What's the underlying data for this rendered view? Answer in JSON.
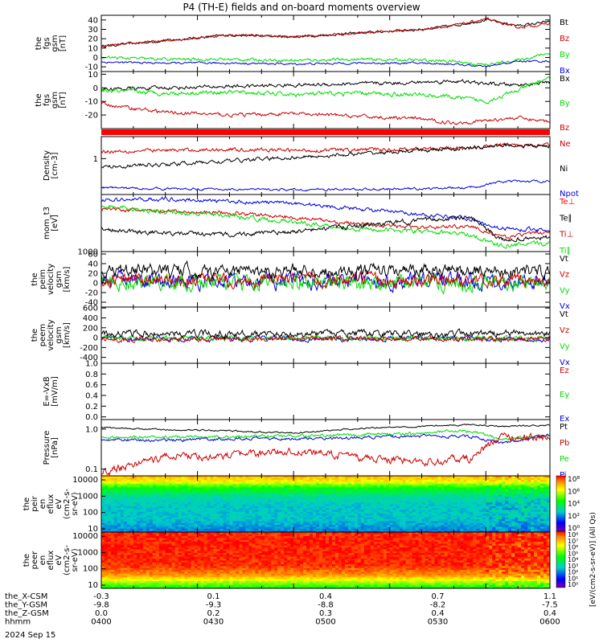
{
  "title": "P4 (TH-E) fields and on-board moments overview",
  "colors": {
    "black": "#000000",
    "red": "#cc0000",
    "green": "#00dd00",
    "blue": "#0000dd",
    "brightred": "#ff0000"
  },
  "chart_data": [
    {
      "id": "fgs_bt",
      "type": "line",
      "ylabel_lines": [
        "the",
        "fgs",
        "gsm",
        "[nT]"
      ],
      "ylim": [
        -15,
        45
      ],
      "yticks": [
        -10,
        0,
        10,
        20,
        30,
        40
      ],
      "legend": [
        {
          "name": "Bt",
          "color": "#000000"
        },
        {
          "name": "Bz",
          "color": "#cc0000"
        },
        {
          "name": "By",
          "color": "#00dd00"
        },
        {
          "name": "Bx",
          "color": "#0000dd"
        }
      ],
      "series": [
        {
          "name": "Bt",
          "color": "#000000",
          "noise": 1.0,
          "x": [
            -0.3,
            -0.1,
            0.1,
            0.3,
            0.5,
            0.7,
            0.8,
            0.9,
            1.0,
            1.1
          ],
          "y": [
            12,
            18,
            24,
            22,
            26,
            30,
            34,
            40,
            34,
            38
          ]
        },
        {
          "name": "Bz",
          "color": "#cc0000",
          "noise": 1.0,
          "x": [
            -0.3,
            -0.1,
            0.1,
            0.3,
            0.5,
            0.7,
            0.8,
            0.9,
            1.0,
            1.1
          ],
          "y": [
            12,
            18,
            24,
            22,
            26,
            30,
            34,
            41,
            32,
            36
          ]
        },
        {
          "name": "By",
          "color": "#00dd00",
          "noise": 1.2,
          "x": [
            -0.3,
            -0.1,
            0.1,
            0.3,
            0.5,
            0.7,
            0.8,
            0.9,
            1.0,
            1.1
          ],
          "y": [
            0,
            -2,
            -2,
            -3,
            -2,
            -3,
            -4,
            -8,
            -3,
            5
          ]
        },
        {
          "name": "Bx",
          "color": "#0000dd",
          "noise": 0.8,
          "x": [
            -0.3,
            -0.1,
            0.1,
            0.3,
            0.5,
            0.7,
            0.8,
            0.9,
            1.0,
            1.1
          ],
          "y": [
            -5,
            -6,
            -6,
            -7,
            -6,
            -6,
            -7,
            -10,
            -4,
            -4
          ]
        }
      ]
    },
    {
      "id": "fgs_b",
      "type": "line",
      "ylabel_lines": [
        "the",
        "fgs",
        "gsm",
        "[nT]"
      ],
      "ylim": [
        -30,
        12
      ],
      "yticks": [
        -20,
        -10,
        0,
        10
      ],
      "legend": [
        {
          "name": "Bx",
          "color": "#000000"
        },
        {
          "name": "By",
          "color": "#00dd00"
        },
        {
          "name": "Bz",
          "color": "#cc0000"
        }
      ],
      "series": [
        {
          "name": "Bx",
          "color": "#000000",
          "noise": 1.0,
          "x": [
            -0.3,
            -0.1,
            0.1,
            0.3,
            0.5,
            0.7,
            0.8,
            0.9,
            1.0,
            1.1
          ],
          "y": [
            -1,
            0,
            1,
            2,
            3,
            4,
            5,
            3,
            2,
            4
          ]
        },
        {
          "name": "By",
          "color": "#00dd00",
          "noise": 1.2,
          "x": [
            -0.3,
            -0.1,
            0.1,
            0.3,
            0.5,
            0.7,
            0.8,
            0.9,
            1.0,
            1.1
          ],
          "y": [
            -2,
            -4,
            -3,
            -5,
            -4,
            -5,
            -7,
            -10,
            -2,
            8
          ]
        },
        {
          "name": "Bz",
          "color": "#cc0000",
          "noise": 1.0,
          "x": [
            -0.3,
            -0.1,
            0.1,
            0.3,
            0.5,
            0.7,
            0.8,
            0.9,
            1.0,
            1.1
          ],
          "y": [
            -12,
            -18,
            -20,
            -19,
            -21,
            -23,
            -26,
            -24,
            -22,
            -25
          ]
        }
      ]
    },
    {
      "id": "density",
      "type": "line",
      "ylabel_lines": [
        "Density",
        "[cm-3]"
      ],
      "ylim": [
        0,
        10
      ],
      "yticks_labels": [
        {
          "v": 6.2,
          "t": "1"
        }
      ],
      "legend": [
        {
          "name": "Ne",
          "color": "#cc0000"
        },
        {
          "name": "Ni",
          "color": "#000000"
        },
        {
          "name": "Npot",
          "color": "#0000dd"
        }
      ],
      "series": [
        {
          "name": "Ne",
          "color": "#cc0000",
          "noise": 0.25,
          "x": [
            -0.3,
            -0.1,
            0.1,
            0.3,
            0.5,
            0.7,
            0.85,
            0.95,
            1.1
          ],
          "y": [
            7.5,
            7.6,
            7.8,
            7.6,
            7.7,
            7.9,
            8.0,
            8.6,
            8.5
          ]
        },
        {
          "name": "Ni",
          "color": "#000000",
          "noise": 0.25,
          "x": [
            -0.3,
            -0.1,
            0.1,
            0.3,
            0.5,
            0.7,
            0.85,
            0.95,
            1.1
          ],
          "y": [
            4.8,
            5.2,
            5.8,
            6.4,
            7.0,
            7.6,
            8.0,
            8.5,
            8.4
          ]
        },
        {
          "name": "Npot",
          "color": "#0000dd",
          "noise": 0.15,
          "x": [
            -0.3,
            -0.1,
            0.1,
            0.3,
            0.5,
            0.7,
            0.85,
            0.95,
            1.1
          ],
          "y": [
            1.2,
            1.0,
            0.9,
            0.8,
            0.9,
            1.0,
            1.2,
            2.2,
            2.3
          ]
        }
      ]
    },
    {
      "id": "temp",
      "type": "line",
      "ylabel_lines": [
        "mom_t3",
        "[eV]"
      ],
      "ylim": [
        0,
        10
      ],
      "yticks_labels": [
        {
          "v": 0,
          "t": "1000"
        }
      ],
      "legend": [
        {
          "name": "Te⊥",
          "color": "#ff0000"
        },
        {
          "name": "Te∥",
          "color": "#000000"
        },
        {
          "name": "Ti⊥",
          "color": "#cc0000"
        },
        {
          "name": "Ti∥",
          "color": "#00dd00"
        }
      ],
      "series": [
        {
          "name": "Tperp_i",
          "color": "#0000dd",
          "noise": 0.25,
          "x": [
            -0.3,
            -0.1,
            0.1,
            0.3,
            0.5,
            0.7,
            0.85,
            0.95,
            1.1
          ],
          "y": [
            9.0,
            9.2,
            8.8,
            8.5,
            7.5,
            6.5,
            5.8,
            4.0,
            3.8
          ]
        },
        {
          "name": "Te_perp",
          "color": "#cc0000",
          "noise": 0.25,
          "x": [
            -0.3,
            -0.1,
            0.1,
            0.3,
            0.5,
            0.7,
            0.85,
            0.95,
            1.1
          ],
          "y": [
            7.5,
            7.0,
            6.8,
            6.0,
            4.8,
            4.2,
            4.5,
            2.5,
            3.5
          ]
        },
        {
          "name": "Ti_par",
          "color": "#00dd00",
          "noise": 0.3,
          "x": [
            -0.3,
            -0.1,
            0.1,
            0.3,
            0.5,
            0.7,
            0.85,
            0.95,
            1.1
          ],
          "y": [
            8.0,
            7.0,
            6.2,
            5.2,
            4.0,
            3.5,
            3.0,
            1.0,
            1.5
          ]
        },
        {
          "name": "Te_par",
          "color": "#000000",
          "noise": 0.3,
          "x": [
            -0.3,
            -0.1,
            0.1,
            0.3,
            0.5,
            0.7,
            0.85,
            0.95,
            1.1
          ],
          "y": [
            4.0,
            3.2,
            3.0,
            3.5,
            4.5,
            5.5,
            6.0,
            2.0,
            2.5
          ]
        }
      ]
    },
    {
      "id": "peim",
      "type": "line",
      "ylabel_lines": [
        "the",
        "peim",
        "velocity",
        "gsm",
        "[km/s]"
      ],
      "ylim": [
        -50,
        65
      ],
      "yticks": [
        -40,
        -20,
        0,
        20,
        40,
        60
      ],
      "legend": [
        {
          "name": "Vt",
          "color": "#000000"
        },
        {
          "name": "Vz",
          "color": "#cc0000"
        },
        {
          "name": "Vy",
          "color": "#00dd00"
        },
        {
          "name": "Vx",
          "color": "#0000dd"
        }
      ],
      "series": [
        {
          "name": "Vx",
          "color": "#0000dd",
          "noise": 12,
          "x": [
            -0.3,
            1.1
          ],
          "y": [
            5,
            5
          ]
        },
        {
          "name": "Vy",
          "color": "#00dd00",
          "noise": 12,
          "x": [
            -0.3,
            1.1
          ],
          "y": [
            0,
            0
          ]
        },
        {
          "name": "Vz",
          "color": "#cc0000",
          "noise": 10,
          "x": [
            -0.3,
            1.1
          ],
          "y": [
            5,
            5
          ]
        },
        {
          "name": "Vt",
          "color": "#000000",
          "noise": 10,
          "x": [
            -0.3,
            1.1
          ],
          "y": [
            25,
            25
          ]
        }
      ]
    },
    {
      "id": "peem",
      "type": "line",
      "ylabel_lines": [
        "the",
        "peem",
        "velocity",
        "gsm",
        "[km/s]"
      ],
      "ylim": [
        -520,
        620
      ],
      "yticks": [
        -400,
        -200,
        0,
        200,
        400,
        600
      ],
      "legend": [
        {
          "name": "Vt",
          "color": "#000000"
        },
        {
          "name": "Vz",
          "color": "#cc0000"
        },
        {
          "name": "Vy",
          "color": "#00dd00"
        },
        {
          "name": "Vx",
          "color": "#0000dd"
        }
      ],
      "series": [
        {
          "name": "Vx",
          "color": "#0000dd",
          "noise": 40,
          "x": [
            -0.3,
            1.1
          ],
          "y": [
            -20,
            -20
          ]
        },
        {
          "name": "Vy",
          "color": "#00dd00",
          "noise": 35,
          "x": [
            -0.3,
            1.1
          ],
          "y": [
            -10,
            -10
          ]
        },
        {
          "name": "Vz",
          "color": "#cc0000",
          "noise": 40,
          "x": [
            -0.3,
            1.1
          ],
          "y": [
            -30,
            -30
          ]
        },
        {
          "name": "Vt",
          "color": "#000000",
          "noise": 50,
          "x": [
            -0.3,
            1.1
          ],
          "y": [
            80,
            80
          ]
        }
      ]
    },
    {
      "id": "efield",
      "type": "line",
      "ylabel_lines": [
        "E=-VxB",
        "[mV/m]"
      ],
      "ylim": [
        -0.05,
        1.0
      ],
      "yticks": [
        0.0,
        0.2,
        0.4,
        0.6,
        0.8,
        1.0
      ],
      "ytick_fmt": 1,
      "legend": [
        {
          "name": "Ez",
          "color": "#cc0000"
        },
        {
          "name": "Ey",
          "color": "#00dd00"
        },
        {
          "name": "Ex",
          "color": "#0000dd"
        }
      ],
      "series": []
    },
    {
      "id": "pressure",
      "type": "line",
      "ylabel_lines": [
        "Pressure",
        "[nPa]"
      ],
      "ylim": [
        0,
        10
      ],
      "yticks_labels": [
        {
          "v": 1.2,
          "t": "0.1"
        },
        {
          "v": 8.3,
          "t": "1.0"
        }
      ],
      "legend": [
        {
          "name": "Pt",
          "color": "#000000"
        },
        {
          "name": "Pb",
          "color": "#cc0000"
        },
        {
          "name": "Pe",
          "color": "#00dd00"
        },
        {
          "name": "Pi",
          "color": "#0000dd"
        }
      ],
      "series": [
        {
          "name": "Pt",
          "color": "#000000",
          "noise": 0.1,
          "x": [
            -0.3,
            -0.1,
            0.1,
            0.3,
            0.5,
            0.7,
            0.85,
            0.95,
            1.1
          ],
          "y": [
            8.6,
            8.2,
            8.0,
            7.6,
            8.4,
            8.8,
            9.1,
            8.8,
            9.0
          ]
        },
        {
          "name": "Pe",
          "color": "#00dd00",
          "noise": 0.2,
          "x": [
            -0.3,
            -0.1,
            0.1,
            0.3,
            0.5,
            0.7,
            0.85,
            0.95,
            1.1
          ],
          "y": [
            6.8,
            6.9,
            7.0,
            7.1,
            7.3,
            7.6,
            8.0,
            6.5,
            7.0
          ]
        },
        {
          "name": "Pi",
          "color": "#0000dd",
          "noise": 0.2,
          "x": [
            -0.3,
            -0.1,
            0.1,
            0.3,
            0.5,
            0.7,
            0.85,
            0.95,
            1.1
          ],
          "y": [
            6.5,
            6.3,
            6.6,
            6.6,
            6.8,
            7.0,
            7.0,
            5.8,
            7.2
          ]
        },
        {
          "name": "Pb",
          "color": "#cc0000",
          "noise": 0.5,
          "x": [
            -0.3,
            -0.1,
            0.1,
            0.3,
            0.5,
            0.7,
            0.85,
            0.95,
            1.1
          ],
          "y": [
            0.5,
            3.5,
            3.5,
            4.5,
            3.2,
            2.5,
            3.0,
            7.0,
            6.8
          ]
        }
      ]
    },
    {
      "id": "peir_spec",
      "type": "heatmap",
      "ylabel_lines": [
        "the",
        "peir",
        "en",
        "eflux",
        "eV",
        "(cm2-s-",
        "sr-eV)"
      ],
      "yticks_labels": [
        {
          "v": 0,
          "t": "10"
        },
        {
          "v": 1,
          "t": "100"
        },
        {
          "v": 2,
          "t": "1000"
        },
        {
          "v": 3,
          "t": "10000"
        }
      ],
      "bands": [
        [
          0,
          0.28
        ],
        [
          0.25,
          0.35
        ],
        [
          0.45,
          0.35
        ],
        [
          0.62,
          0.4
        ],
        [
          0.78,
          0.55
        ],
        [
          0.9,
          0.78
        ],
        [
          1.0,
          0.85
        ]
      ]
    },
    {
      "id": "peer_spec",
      "type": "heatmap",
      "ylabel_lines": [
        "the",
        "peer",
        "en",
        "eflux",
        "eV",
        "(cm2-s-",
        "sr-eV)"
      ],
      "yticks_labels": [
        {
          "v": 0,
          "t": "10"
        },
        {
          "v": 1,
          "t": "100"
        },
        {
          "v": 2,
          "t": "1000"
        },
        {
          "v": 3,
          "t": "10000"
        }
      ],
      "bands": [
        [
          0,
          0.55
        ],
        [
          0.1,
          0.68
        ],
        [
          0.22,
          0.88
        ],
        [
          0.4,
          0.97
        ],
        [
          0.85,
          0.98
        ],
        [
          1.0,
          0.97
        ]
      ]
    }
  ],
  "colorbar": {
    "label": "[eV/(cm2-s-sr-eV)] (All Qs)",
    "upper_ticks": [
      "10⁸",
      "10⁶",
      "10⁴",
      "10²",
      "10⁰"
    ],
    "lower_ticks": [
      "10⁸",
      "10⁷",
      "10⁶",
      "10⁵",
      "10⁴",
      "10³",
      "10²",
      "10¹",
      "10⁰"
    ]
  },
  "xaxis": {
    "rows": [
      {
        "label": "the_X-CSM",
        "values": [
          "-0.3",
          "0.1",
          "0.4",
          "0.7",
          "1.1"
        ]
      },
      {
        "label": "the_Y-GSM",
        "values": [
          "-9.8",
          "-9.3",
          "-8.8",
          "-8.2",
          "-7.5"
        ]
      },
      {
        "label": "the_Z-GSM",
        "values": [
          "0.0",
          "0.2",
          "0.3",
          "0.4",
          "0.4"
        ]
      },
      {
        "label": "hhmm",
        "values": [
          "0400",
          "0430",
          "0500",
          "0530",
          "0600"
        ]
      }
    ],
    "date": "2024 Sep 15"
  }
}
